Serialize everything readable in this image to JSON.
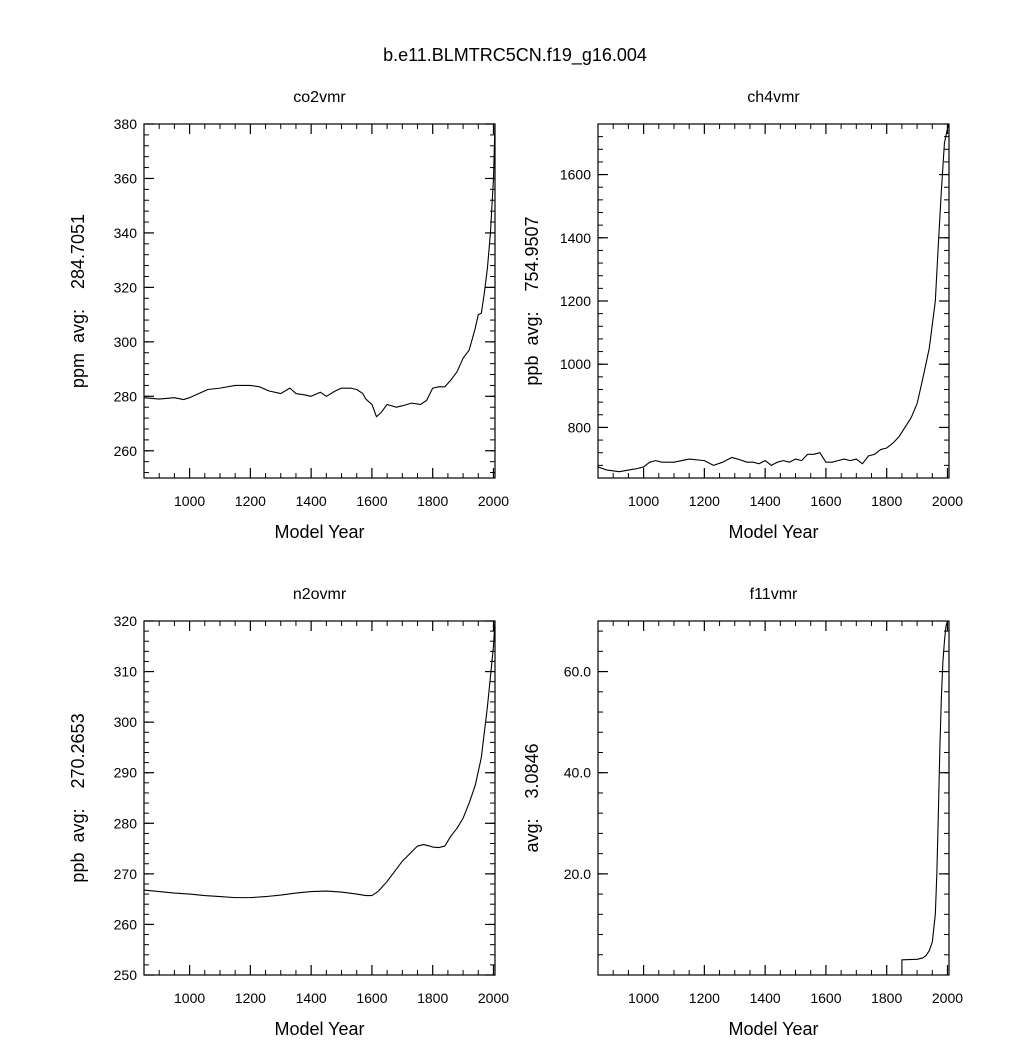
{
  "figure": {
    "title": "b.e11.BLMTRC5CN.f19_g16.004"
  },
  "chart_data": [
    {
      "type": "line",
      "title": "co2vmr",
      "xlabel": "Model Year",
      "ylabel": "ppm  avg:    284.7051",
      "xlim": [
        850,
        2005
      ],
      "ylim": [
        250,
        380
      ],
      "xticks": [
        1000,
        1200,
        1400,
        1600,
        1800,
        2000
      ],
      "yticks": [
        260,
        280,
        300,
        320,
        340,
        360,
        380
      ],
      "ytick_labels": [
        "260",
        "280",
        "300",
        "320",
        "340",
        "360",
        "380"
      ],
      "x": [
        850,
        900,
        950,
        980,
        1000,
        1030,
        1060,
        1100,
        1150,
        1200,
        1230,
        1260,
        1300,
        1330,
        1350,
        1380,
        1400,
        1430,
        1450,
        1480,
        1500,
        1530,
        1550,
        1570,
        1580,
        1600,
        1615,
        1630,
        1650,
        1680,
        1700,
        1730,
        1760,
        1780,
        1800,
        1820,
        1840,
        1860,
        1880,
        1900,
        1920,
        1940,
        1950,
        1960,
        1970,
        1980,
        1990,
        2000,
        2005
      ],
      "series": [
        {
          "values": [
            279.5,
            279,
            279.5,
            278.8,
            279.5,
            281,
            282.5,
            283,
            284,
            284,
            283.5,
            282,
            281,
            283,
            281,
            280.5,
            280,
            281.5,
            280,
            282,
            283,
            283,
            282.5,
            281,
            279,
            277,
            272.5,
            274,
            277,
            276,
            276.5,
            277.5,
            277,
            278.5,
            283,
            283.5,
            283.5,
            286,
            289,
            294,
            297,
            305,
            310,
            310.5,
            318,
            327,
            340,
            360,
            380
          ]
        }
      ]
    },
    {
      "type": "line",
      "title": "ch4vmr",
      "xlabel": "Model Year",
      "ylabel": "ppb  avg:    754.9507",
      "xlim": [
        850,
        2005
      ],
      "ylim": [
        640,
        1760
      ],
      "xticks": [
        1000,
        1200,
        1400,
        1600,
        1800,
        2000
      ],
      "yticks": [
        800,
        1000,
        1200,
        1400,
        1600
      ],
      "ytick_labels": [
        "800",
        "1000",
        "1200",
        "1400",
        "1600"
      ],
      "x": [
        850,
        880,
        920,
        950,
        980,
        1000,
        1020,
        1040,
        1060,
        1100,
        1150,
        1200,
        1230,
        1260,
        1290,
        1310,
        1340,
        1360,
        1380,
        1400,
        1420,
        1440,
        1460,
        1480,
        1500,
        1520,
        1540,
        1560,
        1580,
        1600,
        1620,
        1640,
        1660,
        1680,
        1700,
        1720,
        1740,
        1760,
        1780,
        1800,
        1820,
        1840,
        1860,
        1880,
        1900,
        1920,
        1940,
        1960,
        1970,
        1980,
        1990,
        2000,
        2005
      ],
      "series": [
        {
          "values": [
            675,
            665,
            660,
            665,
            670,
            675,
            690,
            695,
            690,
            690,
            700,
            695,
            680,
            690,
            705,
            700,
            690,
            690,
            685,
            695,
            680,
            690,
            695,
            690,
            700,
            695,
            715,
            715,
            720,
            690,
            690,
            695,
            700,
            695,
            700,
            685,
            710,
            715,
            730,
            735,
            750,
            770,
            800,
            830,
            875,
            960,
            1050,
            1200,
            1380,
            1550,
            1700,
            1745,
            1760
          ]
        }
      ]
    },
    {
      "type": "line",
      "title": "n2ovmr",
      "xlabel": "Model Year",
      "ylabel": "ppb  avg:    270.2653",
      "xlim": [
        850,
        2005
      ],
      "ylim": [
        250,
        320
      ],
      "xticks": [
        1000,
        1200,
        1400,
        1600,
        1800,
        2000
      ],
      "yticks": [
        250,
        260,
        270,
        280,
        290,
        300,
        310,
        320
      ],
      "ytick_labels": [
        "250",
        "260",
        "270",
        "280",
        "290",
        "300",
        "310",
        "320"
      ],
      "x": [
        850,
        900,
        950,
        1000,
        1050,
        1100,
        1150,
        1200,
        1250,
        1300,
        1350,
        1400,
        1450,
        1500,
        1550,
        1580,
        1600,
        1620,
        1650,
        1700,
        1750,
        1770,
        1790,
        1800,
        1820,
        1840,
        1860,
        1880,
        1900,
        1920,
        1940,
        1960,
        1980,
        2000,
        2005
      ],
      "series": [
        {
          "values": [
            266.8,
            266.5,
            266.2,
            266,
            265.7,
            265.5,
            265.3,
            265.3,
            265.5,
            265.8,
            266.2,
            266.5,
            266.6,
            266.4,
            266,
            265.7,
            265.7,
            266.5,
            268.5,
            272.5,
            275.5,
            275.8,
            275.5,
            275.3,
            275.2,
            275.5,
            277.5,
            279,
            281,
            284,
            287.5,
            293,
            303,
            315,
            320
          ]
        }
      ]
    },
    {
      "type": "line",
      "title": "f11vmr",
      "xlabel": "Model Year",
      "ylabel": "avg:    3.0846",
      "xlim": [
        850,
        2005
      ],
      "ylim": [
        0,
        70
      ],
      "xticks": [
        1000,
        1200,
        1400,
        1600,
        1800,
        2000
      ],
      "yticks": [
        20,
        40,
        60
      ],
      "ytick_labels": [
        "20.0",
        "40.0",
        "60.0"
      ],
      "x": [
        1850,
        1850,
        1900,
        1920,
        1930,
        1940,
        1950,
        1960,
        1965,
        1970,
        1975,
        1980,
        1985,
        1990,
        1995,
        2000,
        2005
      ],
      "series": [
        {
          "values": [
            0,
            3,
            3.1,
            3.4,
            3.9,
            4.8,
            6.5,
            12,
            20,
            32,
            45,
            55,
            62,
            66,
            69,
            70,
            70
          ]
        }
      ]
    }
  ]
}
